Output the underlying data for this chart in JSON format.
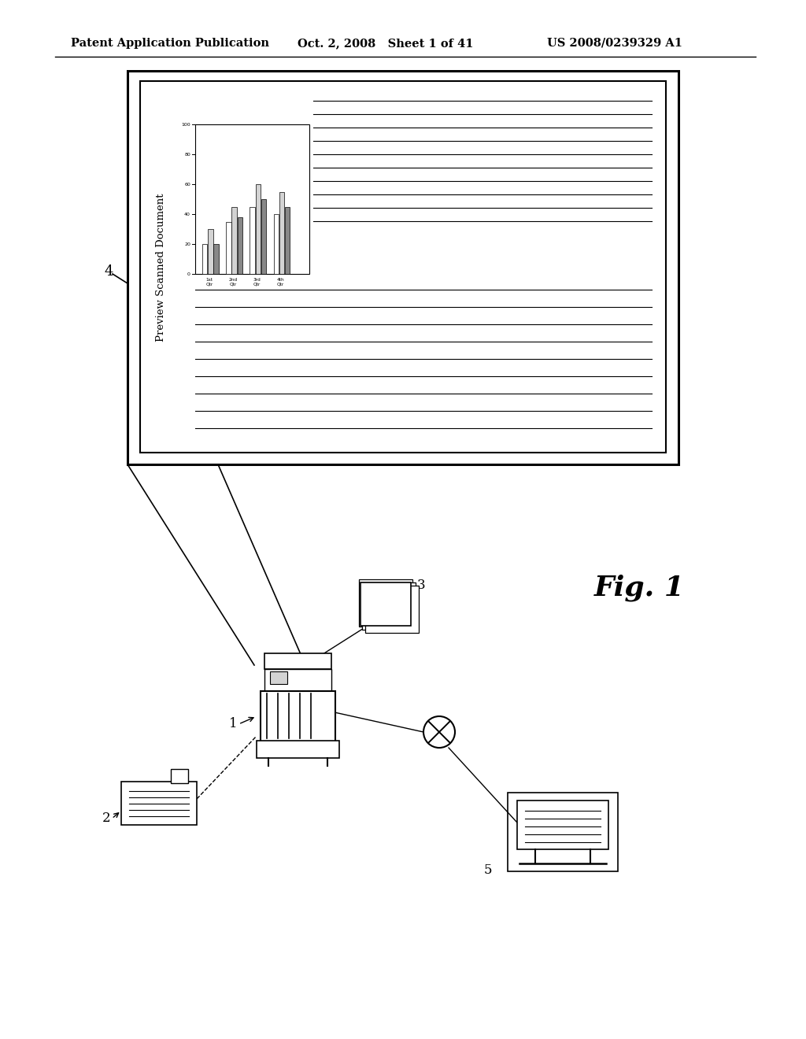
{
  "bg_color": "#ffffff",
  "header_left": "Patent Application Publication",
  "header_center": "Oct. 2, 2008   Sheet 1 of 41",
  "header_right": "US 2008/0239329 A1",
  "fig_label": "Fig. 1",
  "label_4": "4",
  "label_1": "1",
  "label_2": "2",
  "label_3": "3",
  "label_5": "5",
  "preview_text": "Preview Scanned Document",
  "line_color": "#000000",
  "chart_yticks": [
    "100",
    "80",
    "60",
    "40",
    "20",
    "0"
  ],
  "chart_xtick_labels": [
    "1st\nQtr",
    "2nd\nQtr",
    "3rd\nQtr",
    "4th\nQtr"
  ]
}
